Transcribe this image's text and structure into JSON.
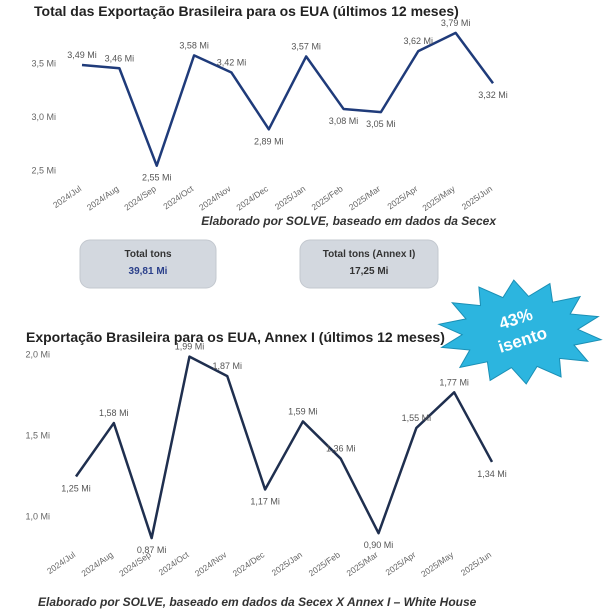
{
  "chart_data": [
    {
      "type": "line",
      "title": "Total das Exportação Brasileira para os EUA (últimos 12 meses)",
      "categories": [
        "2024/Jul",
        "2024/Aug",
        "2024/Sep",
        "2024/Oct",
        "2024/Nov",
        "2024/Dec",
        "2025/Jan",
        "2025/Feb",
        "2025/Mar",
        "2025/Apr",
        "2025/May",
        "2025/Jun"
      ],
      "series": [
        {
          "color": "#1f3b7a",
          "values": [
            3.49,
            3.46,
            2.55,
            3.58,
            3.42,
            2.89,
            3.57,
            3.08,
            3.05,
            3.62,
            3.79,
            3.32
          ],
          "value_labels": [
            "3,49 Mi",
            "3,46 Mi",
            "2,55 Mi",
            "3,58 Mi",
            "3,42 Mi",
            "2,89 Mi",
            "3,57 Mi",
            "3,08 Mi",
            "3,05 Mi",
            "3,62 Mi",
            "3,79 Mi",
            "3,32 Mi"
          ]
        }
      ],
      "ylim": [
        2.45,
        3.85
      ],
      "yticks": [
        {
          "value": 2.5,
          "label": "2,5 Mi"
        },
        {
          "value": 3.0,
          "label": "3,0 Mi"
        },
        {
          "value": 3.5,
          "label": "3,5 Mi"
        }
      ],
      "grid": false
    },
    {
      "type": "line",
      "title": "Exportação Brasileira para os EUA, Annex I (últimos 12 meses)",
      "categories": [
        "2024/Jul",
        "2024/Aug",
        "2024/Sep",
        "2024/Oct",
        "2024/Nov",
        "2024/Dec",
        "2025/Jan",
        "2025/Feb",
        "2025/Mar",
        "2025/Apr",
        "2025/May",
        "2025/Jun"
      ],
      "series": [
        {
          "color": "#1f2f4f",
          "values": [
            1.25,
            1.58,
            0.87,
            1.99,
            1.87,
            1.17,
            1.59,
            1.36,
            0.9,
            1.55,
            1.77,
            1.34
          ],
          "value_labels": [
            "1,25 Mi",
            "1,58 Mi",
            "0,87 Mi",
            "1,99 Mi",
            "1,87 Mi",
            "1,17 Mi",
            "1,59 Mi",
            "1,36 Mi",
            "0,90 Mi",
            "1,55 Mi",
            "1,77 Mi",
            "1,34 Mi"
          ]
        }
      ],
      "ylim": [
        0.85,
        2.02
      ],
      "yticks": [
        {
          "value": 1.0,
          "label": "1,0 Mi"
        },
        {
          "value": 1.5,
          "label": "1,5 Mi"
        },
        {
          "value": 2.0,
          "label": "2,0 Mi"
        }
      ],
      "grid": false
    }
  ],
  "captions": [
    "Elaborado por SOLVE, baseado em dados da Secex",
    "Elaborado por SOLVE, baseado em dados da Secex X Annex I – White House"
  ],
  "cards": [
    {
      "label": "Total tons",
      "value": "39,81 Mi"
    },
    {
      "label": "Total tons (Annex I)",
      "value": "17,25 Mi"
    }
  ],
  "badge": {
    "lines": [
      "43%",
      "isento"
    ]
  }
}
